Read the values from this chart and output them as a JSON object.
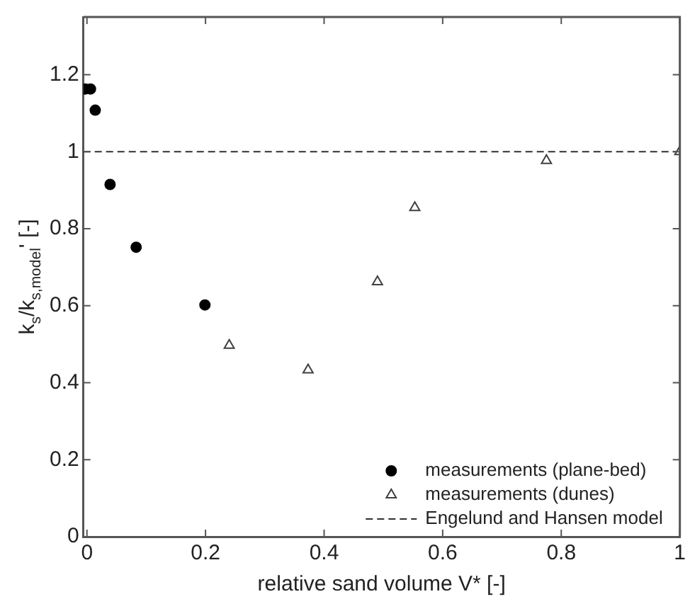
{
  "chart_data": {
    "type": "scatter",
    "xlabel": "relative sand volume V* [-]",
    "ylabel": "k$_{s}$/k$_{s,model}$' [-]",
    "xlim": [
      -0.006,
      1
    ],
    "xticks": [
      0,
      0.2,
      0.4,
      0.6,
      0.8,
      1
    ],
    "ylim": [
      0,
      1.35
    ],
    "yticks": [
      0,
      0.2,
      0.4,
      0.6,
      0.8,
      1,
      1.2
    ],
    "grid": false,
    "legend": "bottom right",
    "series": [
      {
        "name": "measurements (plane-bed)",
        "color": "#000000",
        "marker": "circle",
        "x": [
          -0.003,
          0.006,
          0.014,
          0.039,
          0.083,
          0.199
        ],
        "values": [
          1.163,
          1.163,
          1.108,
          0.915,
          0.752,
          0.602
        ]
      },
      {
        "name": "measurements (dunes)",
        "color": "#404040",
        "marker": "triangle",
        "x": [
          0.24,
          0.373,
          0.49,
          0.553,
          0.775,
          1.0
        ],
        "values": [
          0.497,
          0.433,
          0.662,
          0.855,
          0.977,
          1.0
        ]
      }
    ],
    "ref_lines": [
      {
        "axis": "y",
        "value": 1,
        "label": "Engelund and Hansen model",
        "color": "#303030",
        "line_style": "dashed"
      }
    ]
  }
}
